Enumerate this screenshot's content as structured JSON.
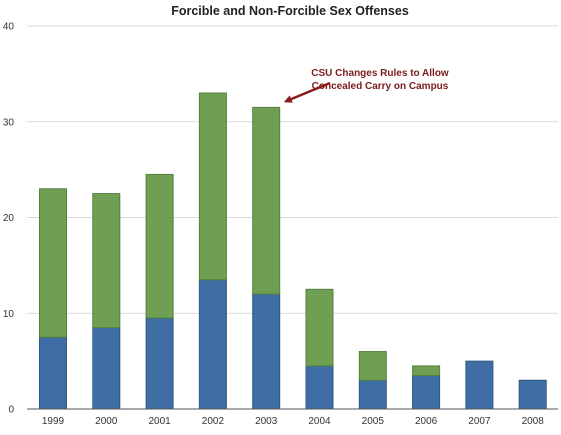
{
  "chart_data": {
    "type": "bar",
    "stacked": true,
    "title": "Forcible and Non-Forcible Sex Offenses",
    "xlabel": "",
    "ylabel": "",
    "categories": [
      "1999",
      "2000",
      "2001",
      "2002",
      "2003",
      "2004",
      "2005",
      "2006",
      "2007",
      "2008"
    ],
    "series": [
      {
        "values": [
          7.5,
          8.5,
          9.5,
          13.5,
          12,
          4.5,
          3,
          3.5,
          5,
          3
        ],
        "color": "#3e6ea4"
      },
      {
        "values": [
          15.5,
          14,
          15,
          19.5,
          19.5,
          8,
          3,
          1,
          0,
          0
        ],
        "color": "#6e9f52"
      }
    ],
    "ylim": [
      0,
      40
    ],
    "yticks": [
      "0",
      "10",
      "20",
      "30",
      "40"
    ],
    "grid": true,
    "legend": "none",
    "annotation": {
      "line1": "CSU Changes Rules to Allow",
      "line2": "Concealed Carry on Campus",
      "target_category": "2003",
      "color": "#8b1a1a"
    }
  }
}
